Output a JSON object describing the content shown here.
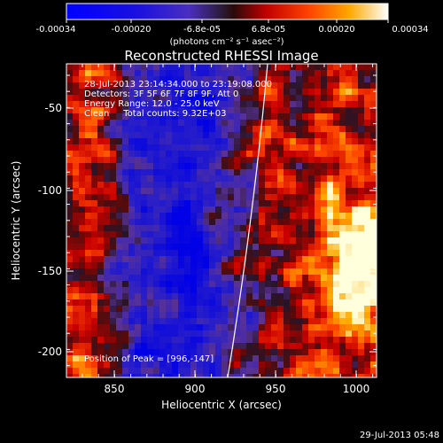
{
  "colorbar": {
    "tick_labels": [
      "-0.00034",
      "-0.00020",
      "-6.8e-05",
      "6.8e-05",
      "0.00020",
      "0.00034"
    ],
    "units_label": "(photons cm⁻² s⁻¹ asec⁻²)",
    "range": [
      -0.00034,
      0.00034
    ]
  },
  "plot": {
    "title": "Reconstructed RHESSI Image",
    "x_axis_label": "Heliocentric X (arcsec)",
    "y_axis_label": "Heliocentric Y (arcsec)",
    "x_ticks": [
      "850",
      "900",
      "950",
      "1000"
    ],
    "y_ticks": [
      "-50",
      "-100",
      "-150",
      "-200"
    ],
    "x_range": [
      820,
      1013
    ],
    "y_range": [
      -220,
      -25
    ]
  },
  "info": {
    "line1": "28-Jul-2013 23:14:34.000 to 23:19:08.000",
    "line2": "Detectors: 3F 5F 6F 7F 8F 9F, Att 0",
    "line3": "Energy Range: 12.0 - 25.0 keV",
    "line4": "Clean     Total counts: 9.32E+03",
    "peak": "Position of Peak = [996,-147]"
  },
  "footer": {
    "timestamp": "29-Jul-2013 05:48"
  },
  "colors": {
    "limb": "#ffffff",
    "axes": "#ffffff",
    "text": "#ffffff"
  }
}
